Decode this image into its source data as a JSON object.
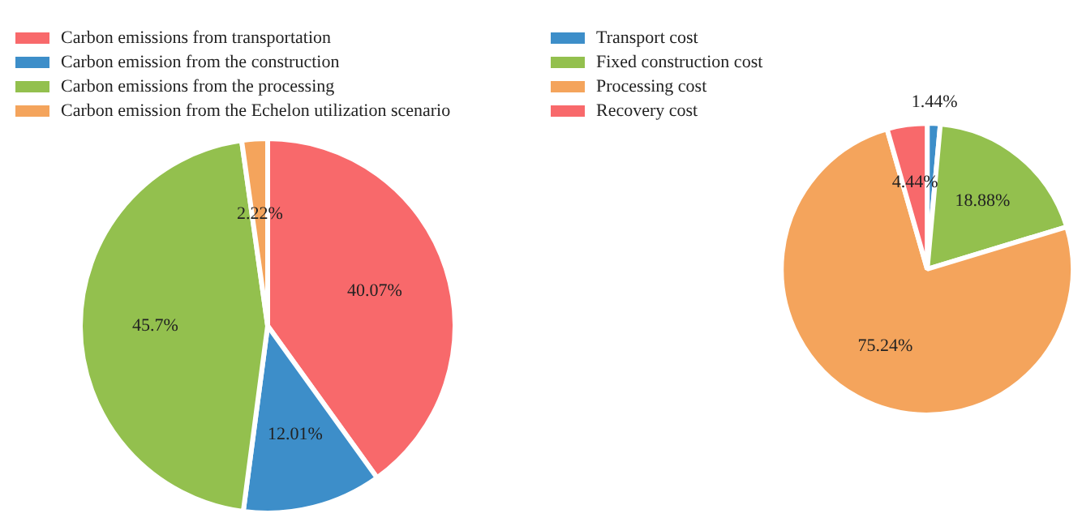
{
  "chart_data": [
    {
      "type": "pie",
      "categories": [
        "Carbon emissions from transportation",
        "Carbon emission from the construction",
        "Carbon emissions from the processing",
        "Carbon emission from the Echelon utilization scenario"
      ],
      "values": [
        40.07,
        12.01,
        45.7,
        2.22
      ],
      "value_labels": [
        "40.07%",
        "12.01%",
        "45.7%",
        "2.22%"
      ],
      "colors": [
        "#f8696b",
        "#3d8ec9",
        "#93c04e",
        "#f4a45c"
      ],
      "legend": "top left"
    },
    {
      "type": "pie",
      "categories": [
        "Transport cost",
        "Fixed construction cost",
        "Processing cost",
        "Recovery cost"
      ],
      "values": [
        1.44,
        18.88,
        75.24,
        4.44
      ],
      "value_labels": [
        "1.44%",
        "18.88%",
        "75.24%",
        "4.44%"
      ],
      "colors": [
        "#3d8ec9",
        "#93c04e",
        "#f4a45c",
        "#f8696b"
      ],
      "legend": "left"
    }
  ]
}
